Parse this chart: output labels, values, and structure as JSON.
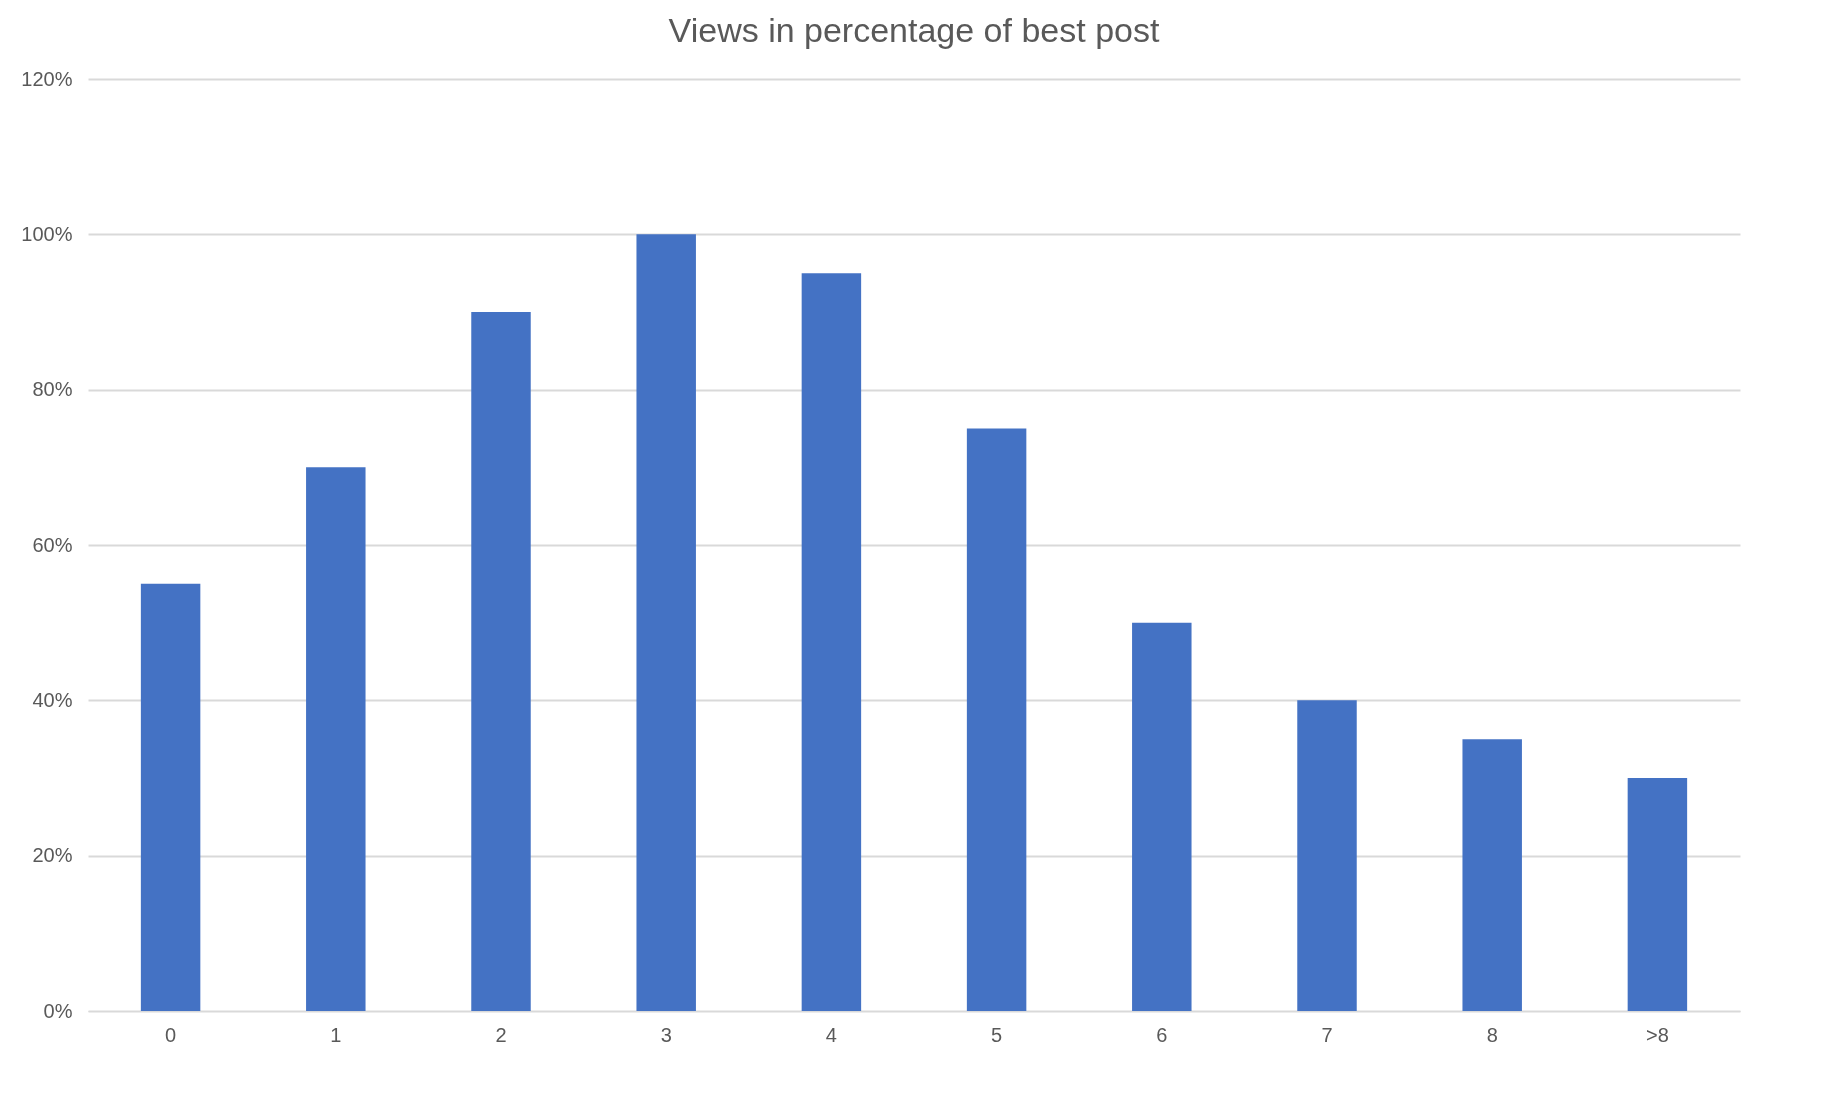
{
  "chart_data": {
    "type": "bar",
    "title": "Views in percentage of best post",
    "categories": [
      "0",
      "1",
      "2",
      "3",
      "4",
      "5",
      "6",
      "7",
      "8",
      ">8"
    ],
    "values": [
      55,
      70,
      90,
      100,
      95,
      75,
      50,
      40,
      35,
      30
    ],
    "color": "#4472c4",
    "ylim": [
      0,
      120
    ],
    "yticks": [
      {
        "value": 0,
        "label": "0%"
      },
      {
        "value": 20,
        "label": "20%"
      },
      {
        "value": 40,
        "label": "40%"
      },
      {
        "value": 60,
        "label": "60%"
      },
      {
        "value": 80,
        "label": "80%"
      },
      {
        "value": 100,
        "label": "100%"
      },
      {
        "value": 120,
        "label": "120%"
      }
    ],
    "grid": "y"
  }
}
